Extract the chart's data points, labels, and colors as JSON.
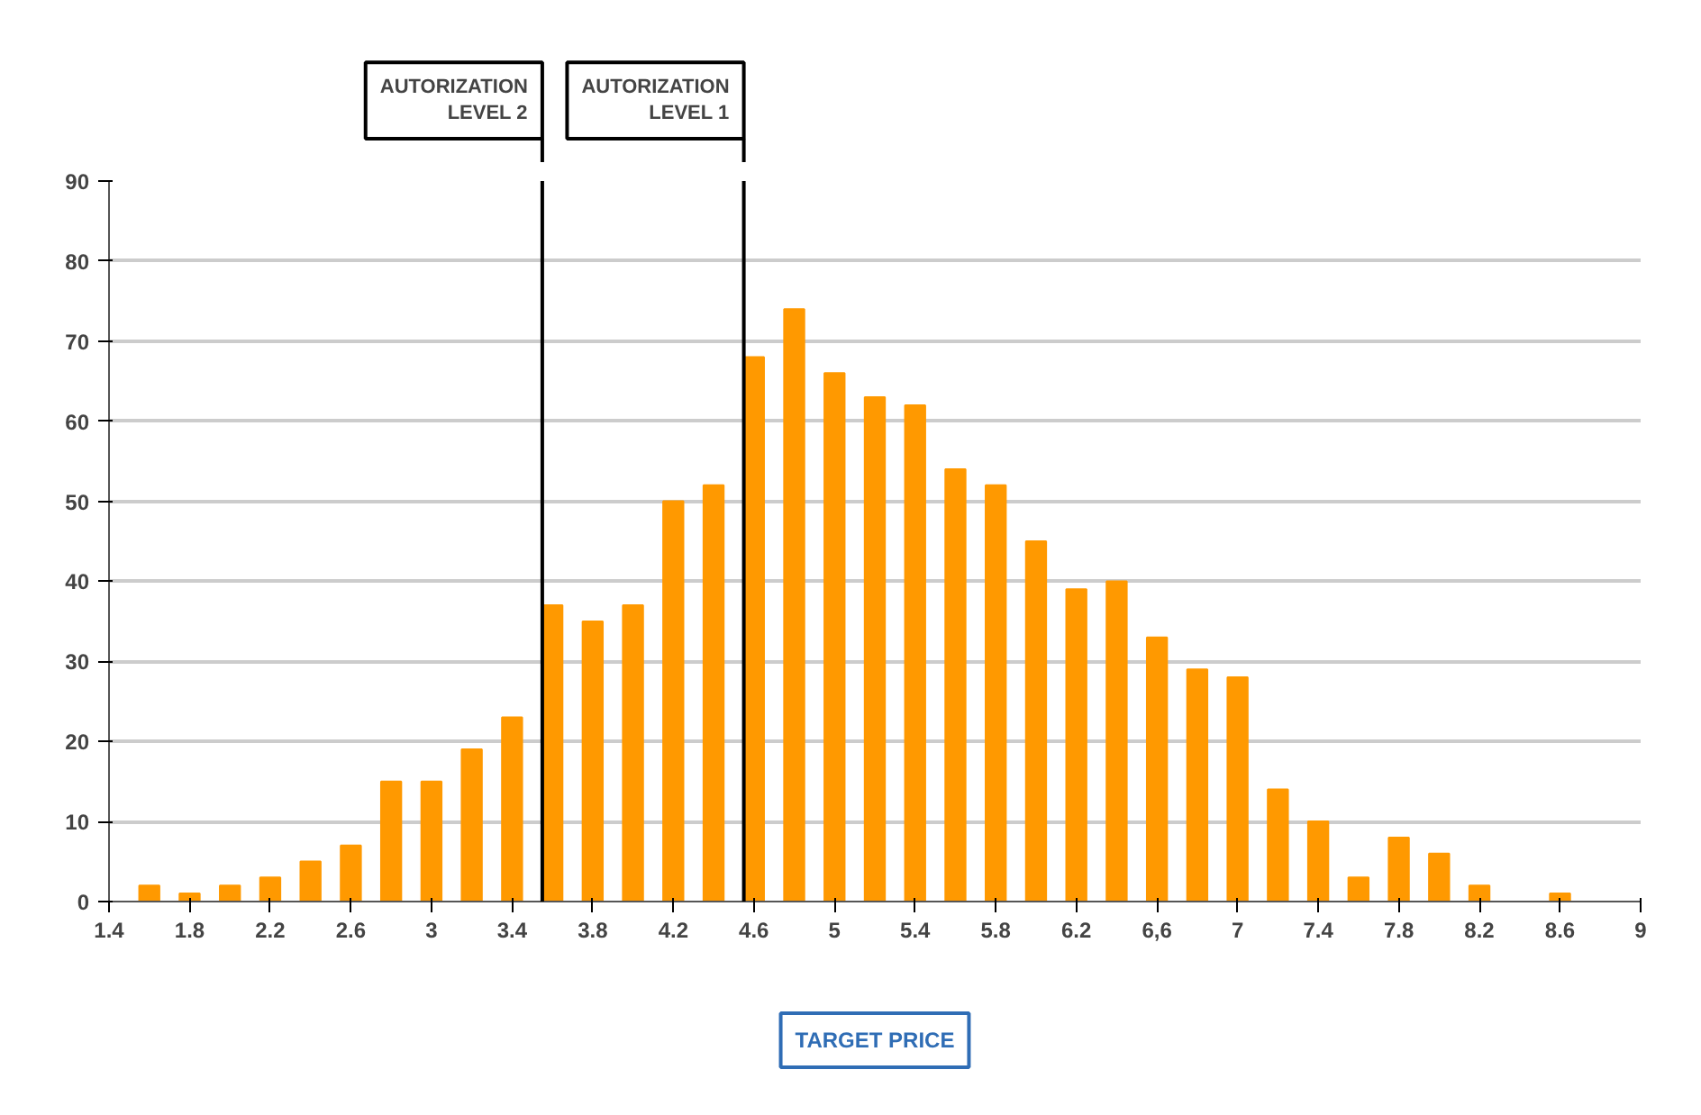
{
  "chart_data": {
    "type": "bar",
    "color": "#ff9900",
    "x": [
      1.6,
      1.8,
      2.0,
      2.2,
      2.4,
      2.6,
      2.8,
      3.0,
      3.2,
      3.4,
      3.6,
      3.8,
      4.0,
      4.2,
      4.4,
      4.6,
      4.8,
      5.0,
      5.2,
      5.4,
      5.6,
      5.8,
      6.0,
      6.2,
      6.4,
      6.6,
      6.8,
      7.0,
      7.2,
      7.4,
      7.6,
      7.8,
      8.0,
      8.2,
      8.4,
      8.6
    ],
    "values": [
      2,
      1,
      2,
      3,
      5,
      7,
      15,
      15,
      19,
      23,
      37,
      35,
      37,
      50,
      52,
      68,
      74,
      66,
      63,
      62,
      54,
      52,
      45,
      39,
      40,
      33,
      29,
      28,
      14,
      10,
      3,
      8,
      6,
      2,
      0,
      1
    ],
    "xlim": [
      1.4,
      9.0
    ],
    "xticks": [
      1.4,
      1.8,
      2.2,
      2.6,
      3,
      3.4,
      3.8,
      4.2,
      4.6,
      5,
      5.4,
      5.8,
      6.2,
      {
        "value": 6.6,
        "label": "6,6"
      },
      7,
      7.4,
      7.8,
      8.2,
      8.6,
      9
    ],
    "ylim": [
      0,
      90
    ],
    "yticks": [
      0,
      10,
      20,
      30,
      40,
      50,
      60,
      70,
      80,
      90
    ],
    "grid": "y",
    "ref_lines": [
      {
        "axis": "x",
        "value": 3.55,
        "label": "AUTORIZATION\nLEVEL 2",
        "color": "#000000"
      },
      {
        "axis": "x",
        "value": 4.55,
        "label": "AUTORIZATION\nLEVEL 1",
        "color": "#000000"
      }
    ],
    "annotations": [
      "TARGET PRICE"
    ]
  }
}
